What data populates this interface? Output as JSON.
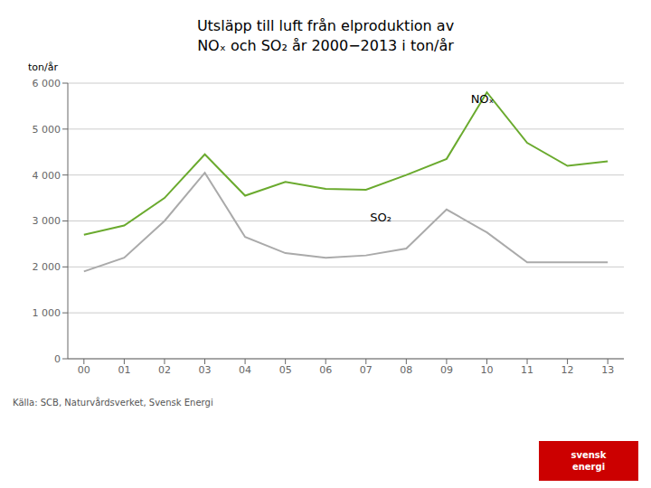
{
  "chart_data": {
    "type": "line",
    "title": "Utsläpp till luft från elproduktion av",
    "subtitle": "NOₓ och SO₂ år 2000−2013 i ton/år",
    "ylabel": "ton/år",
    "x": [
      0,
      1,
      2,
      3,
      4,
      5,
      6,
      7,
      8,
      9,
      10,
      11,
      12,
      13
    ],
    "xlim": [
      -0.4,
      13.4
    ],
    "xticks": [
      {
        "value": 0,
        "label": "00"
      },
      {
        "value": 1,
        "label": "01"
      },
      {
        "value": 2,
        "label": "02"
      },
      {
        "value": 3,
        "label": "03"
      },
      {
        "value": 4,
        "label": "04"
      },
      {
        "value": 5,
        "label": "05"
      },
      {
        "value": 6,
        "label": "06"
      },
      {
        "value": 7,
        "label": "07"
      },
      {
        "value": 8,
        "label": "08"
      },
      {
        "value": 9,
        "label": "09"
      },
      {
        "value": 10,
        "label": "10"
      },
      {
        "value": 11,
        "label": "11"
      },
      {
        "value": 12,
        "label": "12"
      },
      {
        "value": 13,
        "label": "13"
      }
    ],
    "ylim": [
      0,
      6000
    ],
    "yticks": [
      0,
      {
        "value": 1000,
        "label": "1 000"
      },
      {
        "value": 2000,
        "label": "2 000"
      },
      {
        "value": 3000,
        "label": "3 000"
      },
      {
        "value": 4000,
        "label": "4 000"
      },
      {
        "value": 5000,
        "label": "5 000"
      },
      {
        "value": 6000,
        "label": "6 000"
      }
    ],
    "grid": "y",
    "series": [
      {
        "name": "NOₓ",
        "color": "#6aaa2e",
        "values": [
          2700,
          2900,
          3500,
          4450,
          3550,
          3850,
          3700,
          3680,
          4000,
          4350,
          5800,
          4700,
          4200,
          4300
        ]
      },
      {
        "name": "SO₂",
        "color": "#aaaaaa",
        "values": [
          1900,
          2200,
          3000,
          4050,
          2650,
          2300,
          2200,
          2250,
          2400,
          3250,
          2750,
          2100,
          2100,
          2100
        ]
      }
    ],
    "annotations": [
      {
        "text": "NOₓ",
        "x": 9.6,
        "y": 5650
      },
      {
        "text": "SO₂",
        "x": 7.1,
        "y": 3080
      }
    ],
    "source": "Källa: SCB, Naturvårdsverket, Svensk Energi",
    "logo": "svensk\nenergi"
  }
}
